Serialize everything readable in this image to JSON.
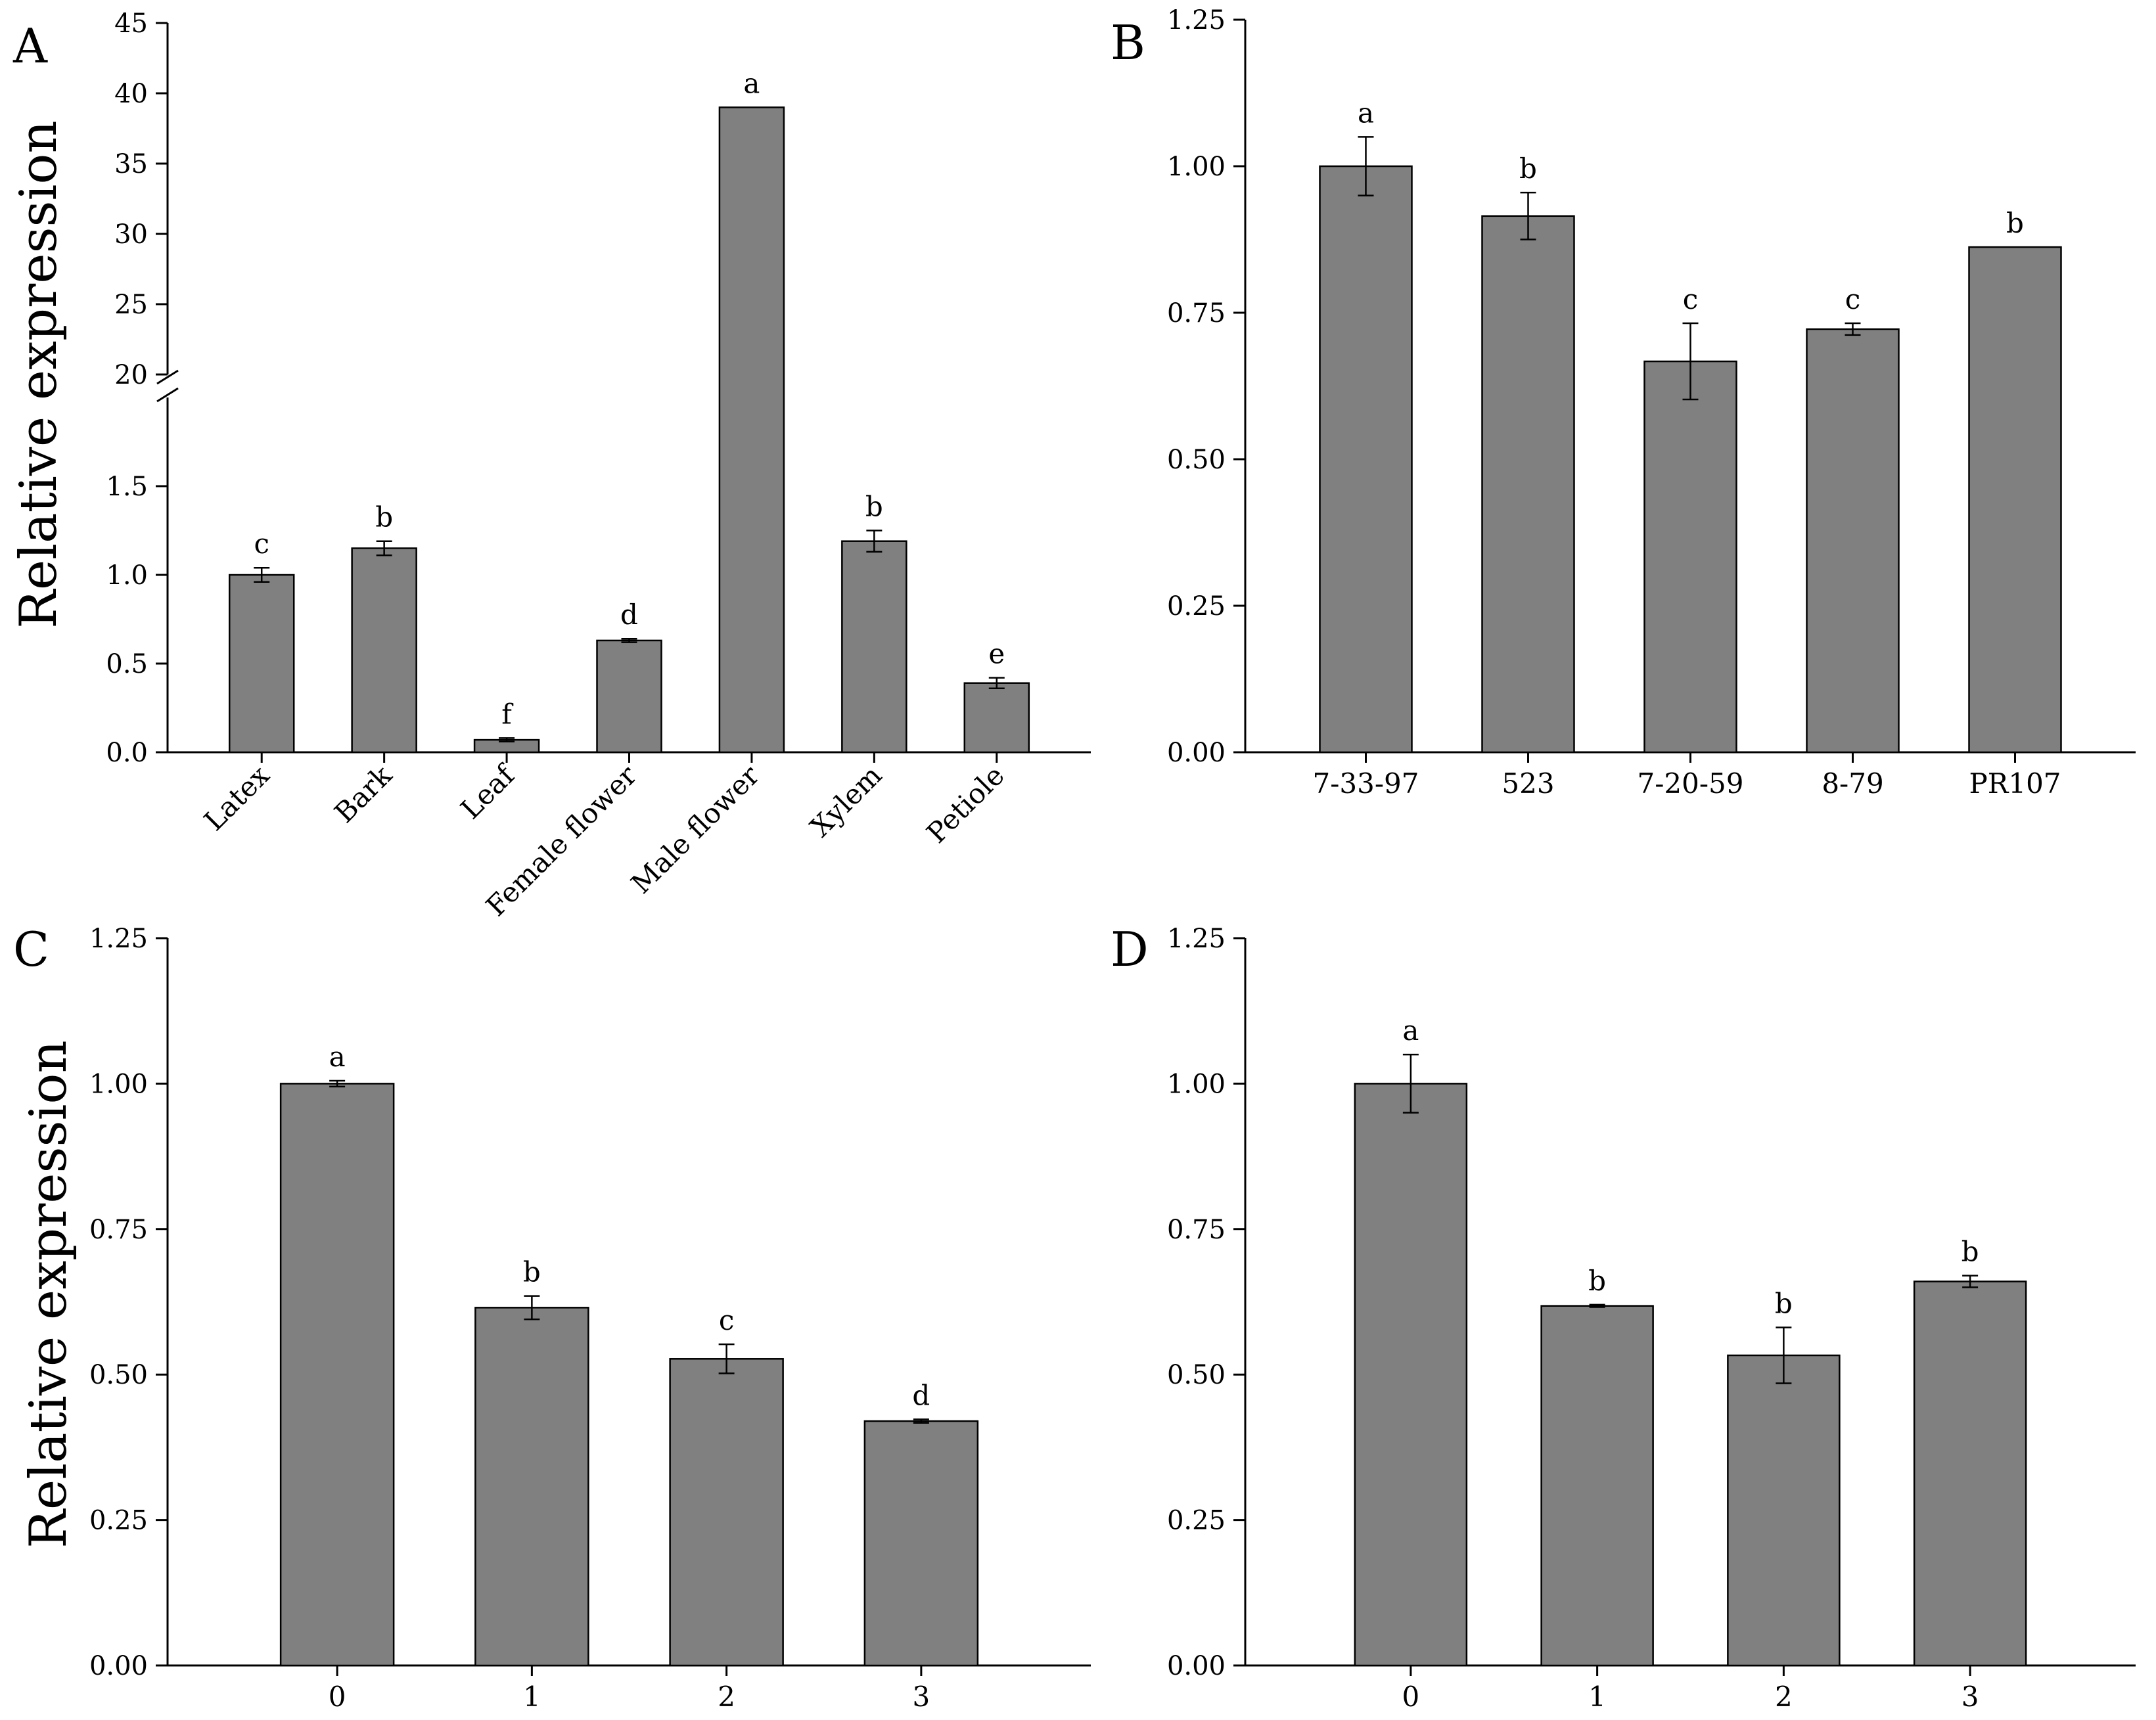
{
  "chart_data": [
    {
      "panel": "A",
      "type": "bar",
      "ylabel": "Relative expression",
      "xlabel": "",
      "broken_axis": true,
      "lower_range": [
        0,
        2
      ],
      "upper_range": [
        20,
        45
      ],
      "yticks_lower": [
        "0.0",
        "0.5",
        "1.0",
        "1.5"
      ],
      "yticks_upper": [
        "20",
        "25",
        "30",
        "35",
        "40",
        "45"
      ],
      "categories": [
        "Latex",
        "Bark",
        "Leaf",
        "Female flower",
        "Male flower",
        "Xylem",
        "Petiole"
      ],
      "values": [
        1.0,
        1.15,
        0.07,
        0.63,
        39.0,
        1.19,
        0.39
      ],
      "errors": [
        0.04,
        0.04,
        0.01,
        0.01,
        0.0,
        0.06,
        0.03
      ],
      "letters": [
        "c",
        "b",
        "f",
        "d",
        "a",
        "b",
        "e"
      ]
    },
    {
      "panel": "B",
      "type": "bar",
      "ylabel": "",
      "xlabel": "",
      "ylim": [
        0,
        1.25
      ],
      "yticks": [
        "0.00",
        "0.25",
        "0.50",
        "0.75",
        "1.00",
        "1.25"
      ],
      "categories": [
        "7-33-97",
        "523",
        "7-20-59",
        "8-79",
        "PR107"
      ],
      "values": [
        1.0,
        0.915,
        0.667,
        0.722,
        0.862
      ],
      "errors": [
        0.05,
        0.04,
        0.065,
        0.01,
        0.0
      ],
      "letters": [
        "a",
        "b",
        "c",
        "c",
        "b"
      ]
    },
    {
      "panel": "C",
      "type": "bar",
      "ylabel": "Relative expression",
      "xlabel": "",
      "ylim": [
        0,
        1.25
      ],
      "yticks": [
        "0.00",
        "0.25",
        "0.50",
        "0.75",
        "1.00",
        "1.25"
      ],
      "categories": [
        "0",
        "1",
        "2",
        "3"
      ],
      "values": [
        1.0,
        0.615,
        0.527,
        0.42
      ],
      "errors": [
        0.005,
        0.02,
        0.025,
        0.003
      ],
      "letters": [
        "a",
        "b",
        "c",
        "d"
      ]
    },
    {
      "panel": "D",
      "type": "bar",
      "ylabel": "",
      "xlabel": "",
      "ylim": [
        0,
        1.25
      ],
      "yticks": [
        "0.00",
        "0.25",
        "0.50",
        "0.75",
        "1.00",
        "1.25"
      ],
      "categories": [
        "0",
        "1",
        "2",
        "3"
      ],
      "values": [
        1.0,
        0.618,
        0.533,
        0.66
      ],
      "errors": [
        0.05,
        0.002,
        0.048,
        0.01
      ],
      "letters": [
        "a",
        "b",
        "b",
        "b"
      ]
    }
  ]
}
